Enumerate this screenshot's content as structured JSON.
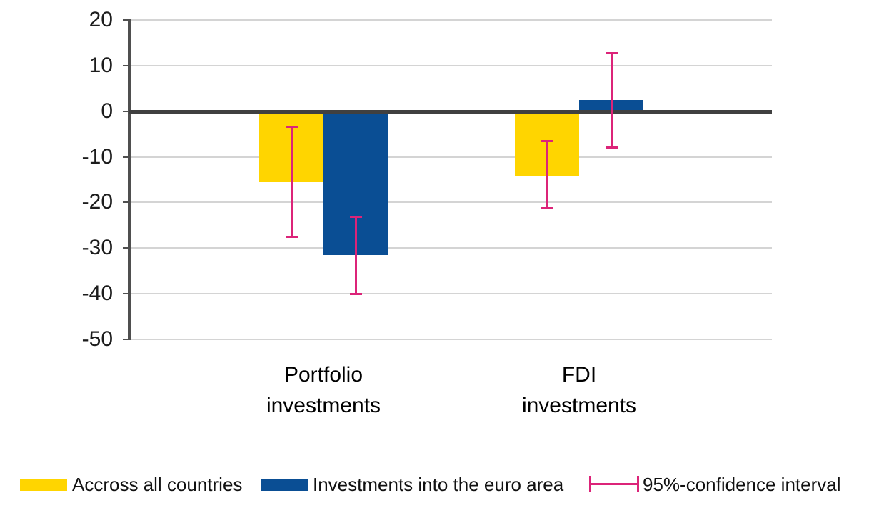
{
  "chart_data": {
    "type": "bar",
    "title": "",
    "xlabel": "",
    "ylabel": "",
    "categories": [
      "Portfolio investments",
      "FDI investments"
    ],
    "category_lines": [
      [
        "Portfolio",
        "investments"
      ],
      [
        "FDI",
        "investments"
      ]
    ],
    "series": [
      {
        "name": "Accross all countries",
        "color": "#FFD500",
        "values": [
          -15.5,
          -14.1
        ],
        "ci_high": [
          -3.4,
          -6.5
        ],
        "ci_low": [
          -27.6,
          -21.3
        ]
      },
      {
        "name": "Investments into the euro area",
        "color": "#0A4E94",
        "values": [
          -31.5,
          2.4
        ],
        "ci_high": [
          -23.1,
          12.7
        ],
        "ci_low": [
          -40.0,
          -7.9
        ]
      }
    ],
    "error_bars": {
      "label": "95%-confidence interval",
      "color": "#DC2479",
      "level": "95%"
    },
    "y_ticks": [
      20,
      10,
      0,
      -10,
      -20,
      -30,
      -40,
      -50
    ],
    "ylim": [
      -50,
      20
    ],
    "grid": true,
    "legend_position": "bottom"
  },
  "colors": {
    "grid": "#D4D4D4",
    "zero_line": "#404040",
    "axis_line": "#4F4F4F",
    "tick_text": "#1C1C1C",
    "background": "#FFFFFF"
  }
}
